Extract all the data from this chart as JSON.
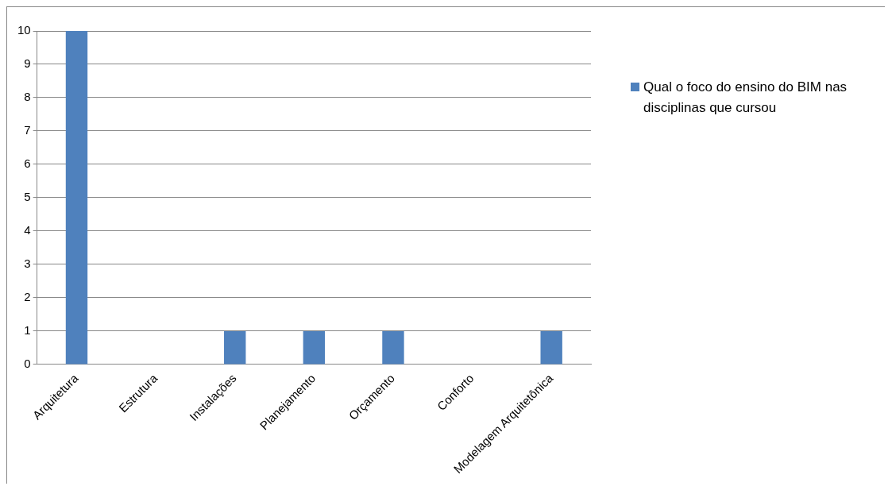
{
  "chart_data": {
    "type": "bar",
    "categories": [
      "Arquitetura",
      "Estrutura",
      "Instalações",
      "Planejamento",
      "Orçamento",
      "Conforto",
      "Modelagem Arquitetônica"
    ],
    "series": [
      {
        "name": "Qual o foco do ensino do BIM nas disciplinas que cursou",
        "color": "#4f81bd",
        "values": [
          10,
          0,
          1,
          1,
          1,
          0,
          1
        ]
      }
    ],
    "ylim": [
      0,
      10
    ],
    "yticks": [
      0,
      1,
      2,
      3,
      4,
      5,
      6,
      7,
      8,
      9,
      10
    ],
    "grid": "y",
    "legend": "right"
  }
}
